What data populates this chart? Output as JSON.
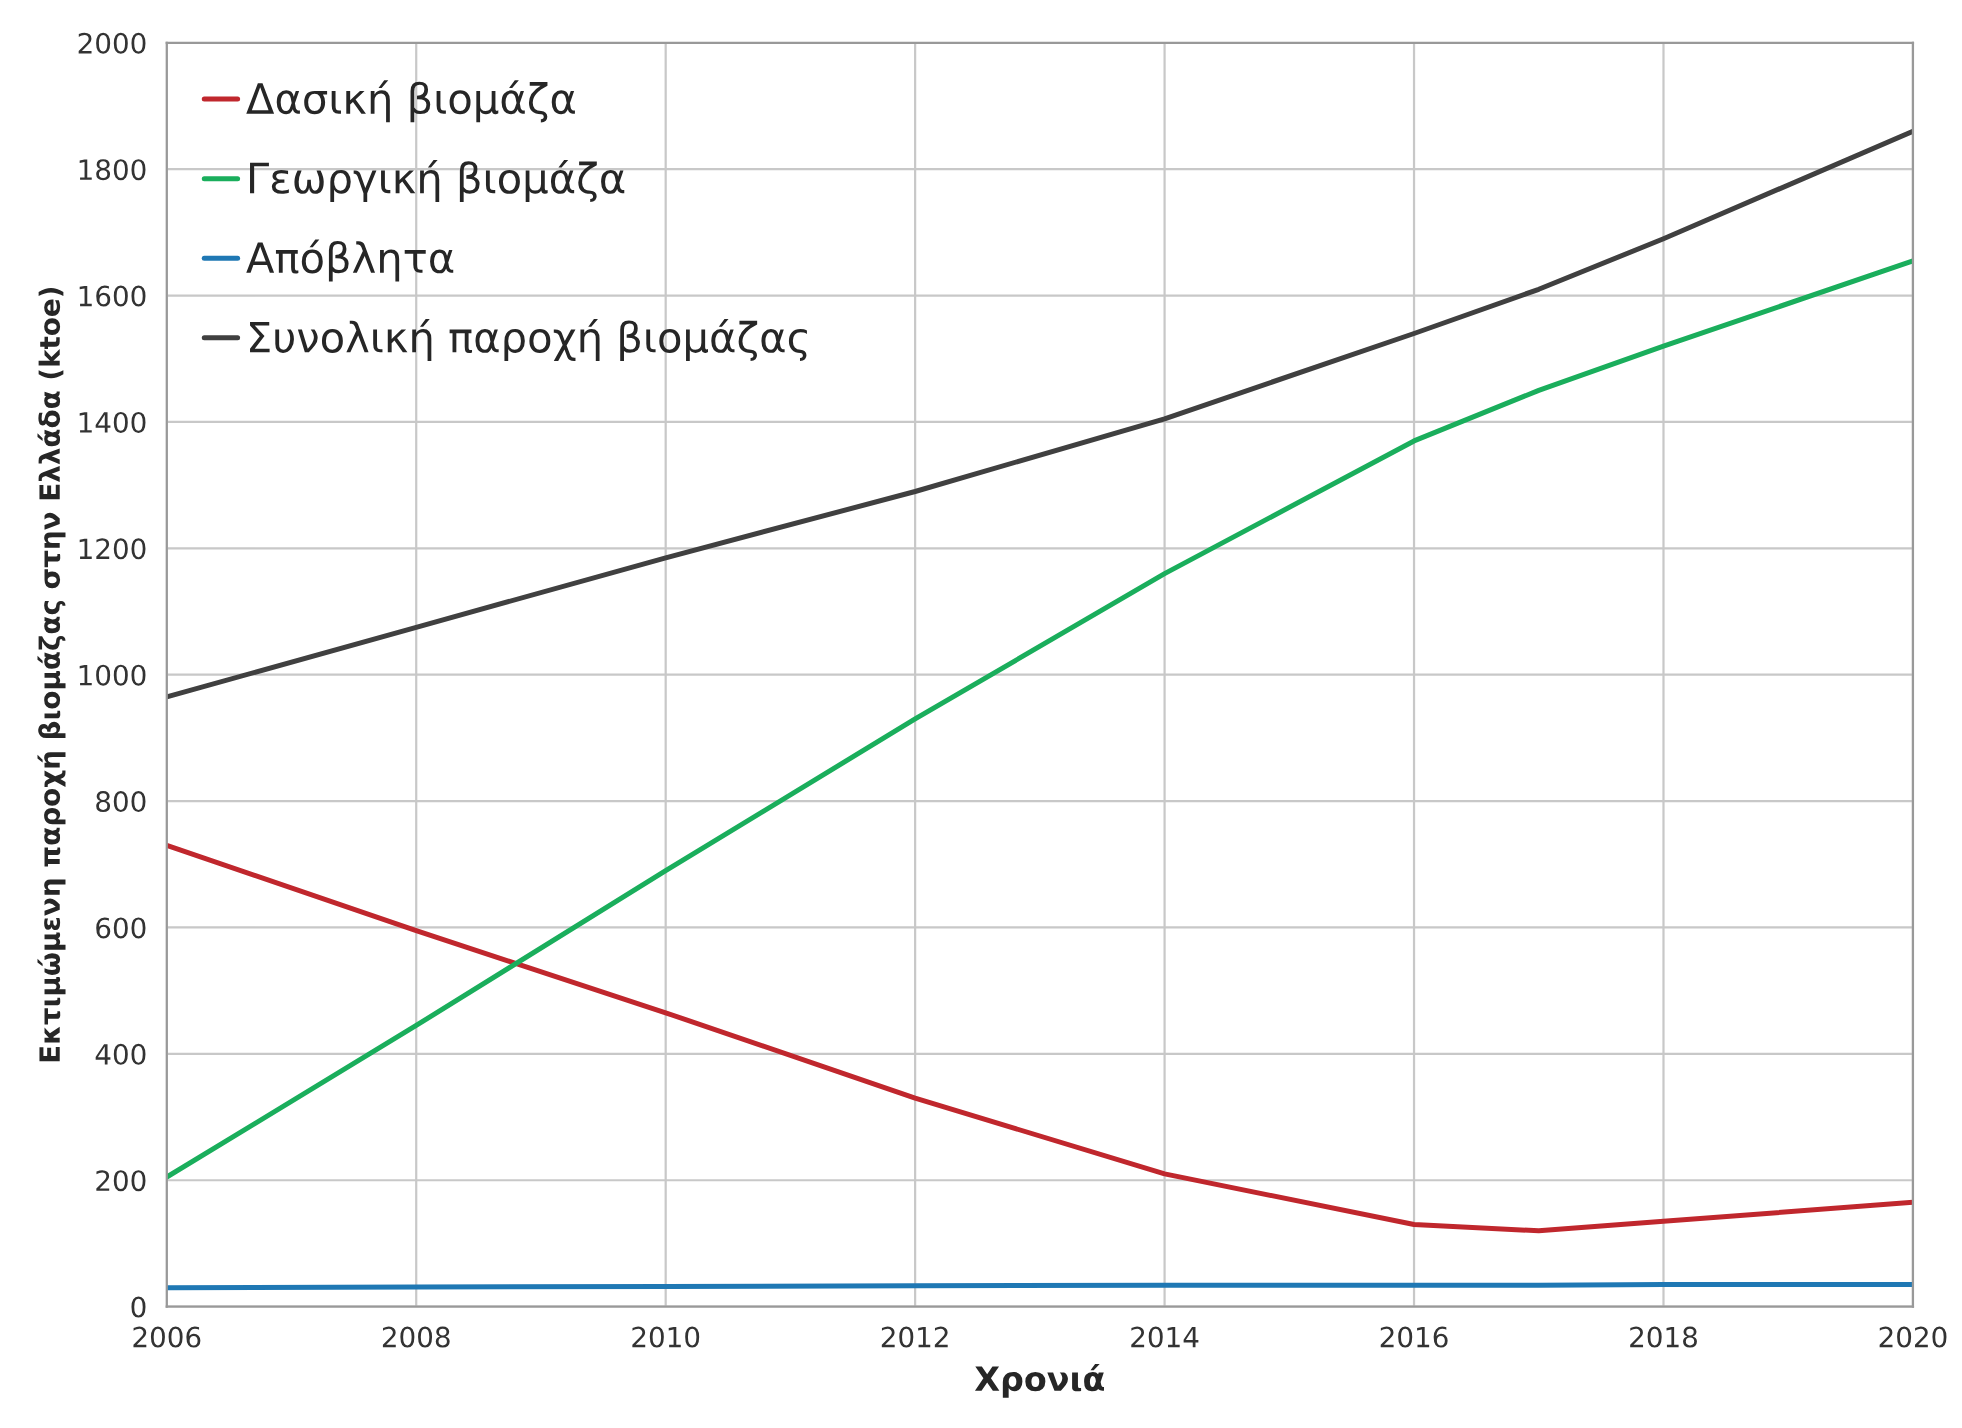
{
  "chart_data": {
    "type": "line",
    "xlabel": "Χρονιά",
    "ylabel": "Εκτιμώμενη παροχή βιομάζας στην Ελλάδα (ktoe)",
    "x": [
      2006,
      2008,
      2010,
      2012,
      2014,
      2016,
      2017,
      2018,
      2020
    ],
    "series": [
      {
        "name": "Δασική βιομάζα",
        "color": "#c0272d",
        "values": [
          730,
          595,
          465,
          330,
          210,
          130,
          120,
          135,
          165
        ]
      },
      {
        "name": "Γεωργική βιομάζα",
        "color": "#1aae5c",
        "values": [
          205,
          445,
          690,
          930,
          1160,
          1370,
          1450,
          1520,
          1655
        ]
      },
      {
        "name": "Απόβλητα",
        "color": "#1f78b4",
        "values": [
          30,
          31,
          32,
          33,
          34,
          34,
          34,
          35,
          35
        ]
      },
      {
        "name": "Συνολική παροχή βιομάζας",
        "color": "#404040",
        "values": [
          965,
          1075,
          1185,
          1290,
          1405,
          1540,
          1610,
          1690,
          1860
        ]
      }
    ],
    "xlim": [
      2006,
      2020
    ],
    "xticks": [
      2006,
      2008,
      2010,
      2012,
      2014,
      2016,
      2018,
      2020
    ],
    "ylim": [
      0,
      2000
    ],
    "yticks": [
      0,
      200,
      400,
      600,
      800,
      1000,
      1200,
      1400,
      1600,
      1800,
      2000
    ],
    "grid": true,
    "legend": "top left",
    "line_style": "solid",
    "marker": "none"
  }
}
